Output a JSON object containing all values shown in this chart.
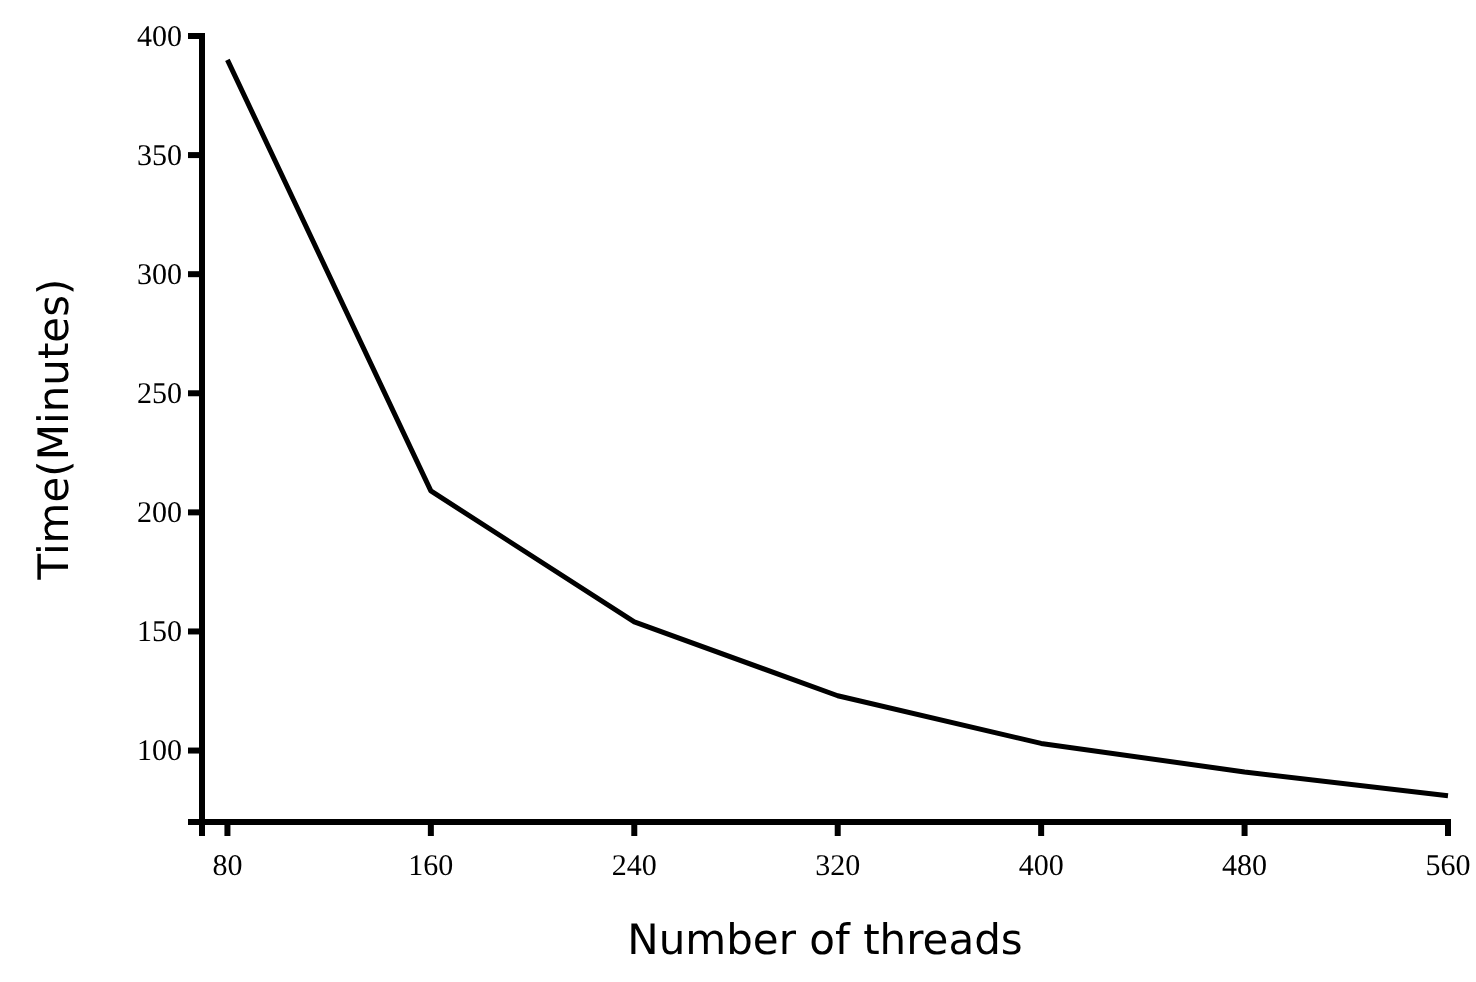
{
  "chart_data": {
    "type": "line",
    "xlabel": "Number of threads",
    "ylabel": "Time(Minutes)",
    "x": [
      80,
      160,
      240,
      320,
      400,
      480,
      560
    ],
    "series": [
      {
        "color": "#000000",
        "values": [
          390,
          209,
          154,
          123,
          103,
          91,
          81
        ]
      }
    ],
    "xlim": [
      70,
      560
    ],
    "ylim": [
      70,
      400
    ],
    "xticks": [
      80,
      160,
      240,
      320,
      400,
      480,
      560
    ],
    "yticks": [
      100,
      150,
      200,
      250,
      300,
      350,
      400
    ],
    "grid": false,
    "marker": "none",
    "line_style": "solid"
  }
}
